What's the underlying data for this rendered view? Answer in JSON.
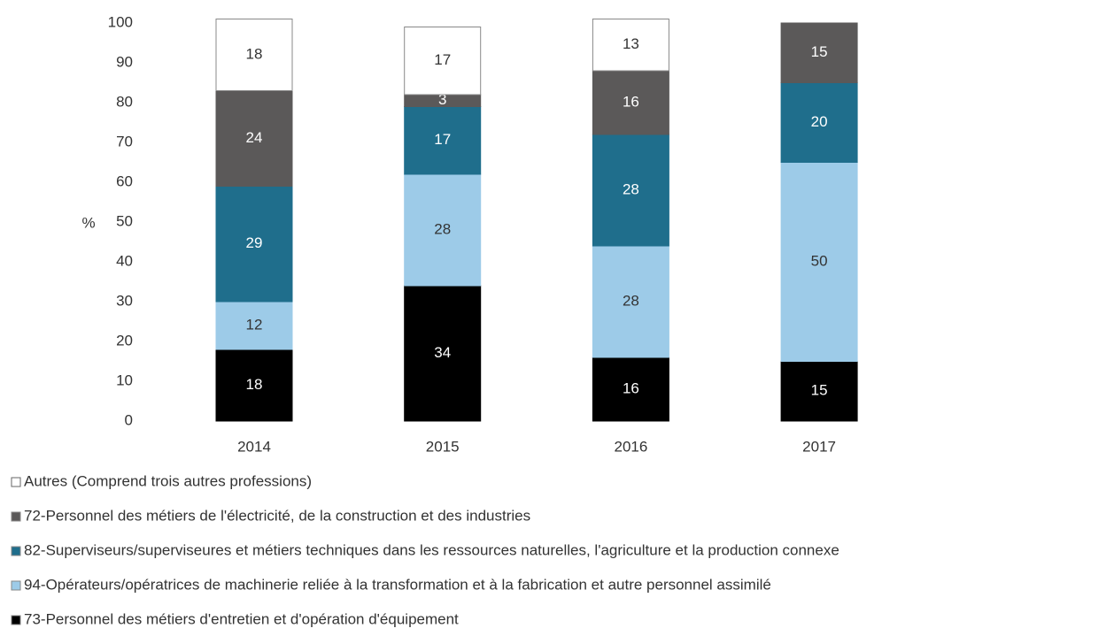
{
  "chart_data": {
    "type": "stacked_bar",
    "y_label": "%",
    "categories": [
      "2014",
      "2015",
      "2016",
      "2017"
    ],
    "ylim": [
      0,
      100
    ],
    "yticks": [
      0,
      10,
      20,
      30,
      40,
      50,
      60,
      70,
      80,
      90,
      100
    ],
    "series": [
      {
        "name": "73-Personnel des métiers d'entretien et d'opération d'équipement",
        "color": "#000000",
        "values": [
          18,
          34,
          16,
          15
        ]
      },
      {
        "name": "94-Opérateurs/opératrices de machinerie reliée à la transformation et à la fabrication et autre personnel assimilé",
        "color": "#9dcbe8",
        "values": [
          12,
          28,
          28,
          50
        ]
      },
      {
        "name": "82-Superviseurs/superviseures et métiers techniques dans les ressources naturelles, l'agriculture et la production connexe",
        "color": "#1f6e8c",
        "values": [
          29,
          17,
          28,
          20
        ]
      },
      {
        "name": "72-Personnel des métiers de l'électricité, de la construction et des industries",
        "color": "#5b5959",
        "values": [
          24,
          3,
          16,
          15
        ]
      },
      {
        "name": "Autres (Comprend trois autres professions)",
        "color": "#ffffff",
        "values": [
          18,
          17,
          13,
          null
        ]
      }
    ],
    "legend": "bottom"
  }
}
